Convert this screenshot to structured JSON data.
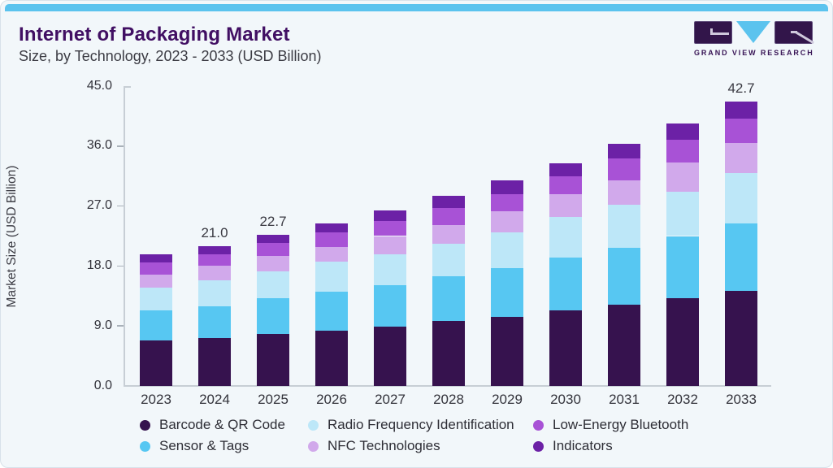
{
  "header": {
    "title": "Internet of Packaging Market",
    "subtitle": "Size, by Technology, 2023 - 2033 (USD Billion)"
  },
  "logo": {
    "text": "GRAND VIEW RESEARCH",
    "block_color": "#32154A",
    "accent_color": "#5BC3EE"
  },
  "accent_bar_color": "#5BC3EE",
  "chart_data": {
    "type": "bar",
    "stacked": true,
    "title": "Internet of Packaging Market Size, by Technology, 2023 - 2033 (USD Billion)",
    "xlabel": "",
    "ylabel": "Market Size (USD Billion)",
    "ylim": [
      0,
      45
    ],
    "yticks": [
      0,
      9,
      18,
      27,
      36,
      45
    ],
    "ytick_labels": [
      "0.0",
      "9.0",
      "18.0",
      "27.0",
      "36.0",
      "45.0"
    ],
    "grid": false,
    "legend_position": "bottom",
    "categories": [
      "2023",
      "2024",
      "2025",
      "2026",
      "2027",
      "2028",
      "2029",
      "2030",
      "2031",
      "2032",
      "2033"
    ],
    "series": [
      {
        "name": "Barcode & QR Code",
        "color": "#36124E",
        "values": [
          6.8,
          7.2,
          7.8,
          8.3,
          8.9,
          9.7,
          10.4,
          11.3,
          12.2,
          13.2,
          14.3
        ]
      },
      {
        "name": "Sensor & Tags",
        "color": "#57C7F2",
        "values": [
          4.6,
          4.8,
          5.4,
          5.8,
          6.2,
          6.8,
          7.3,
          8.0,
          8.5,
          9.3,
          10.1
        ]
      },
      {
        "name": "Radio Frequency Identification",
        "color": "#BDE7F8",
        "values": [
          3.4,
          3.8,
          4.0,
          4.5,
          4.6,
          4.9,
          5.4,
          6.1,
          6.5,
          6.7,
          7.5
        ]
      },
      {
        "name": "NFC Technologies",
        "color": "#D1A9EB",
        "values": [
          1.9,
          2.2,
          2.3,
          2.3,
          2.8,
          2.7,
          3.1,
          3.4,
          3.7,
          4.3,
          4.6
        ]
      },
      {
        "name": "Low-Energy Bluetooth",
        "color": "#A852D6",
        "values": [
          1.8,
          1.8,
          2.0,
          2.2,
          2.2,
          2.6,
          2.6,
          2.7,
          3.3,
          3.5,
          3.6
        ]
      },
      {
        "name": "Indicators",
        "color": "#6C21A6",
        "values": [
          1.2,
          1.2,
          1.2,
          1.3,
          1.6,
          1.8,
          2.1,
          1.9,
          2.1,
          2.4,
          2.6
        ]
      }
    ],
    "totals": [
      19.7,
      21.0,
      22.7,
      24.4,
      26.3,
      28.5,
      30.9,
      33.4,
      36.3,
      39.4,
      42.7
    ],
    "bar_labels": {
      "2024": "21.0",
      "2025": "22.7",
      "2033": "42.7"
    }
  }
}
